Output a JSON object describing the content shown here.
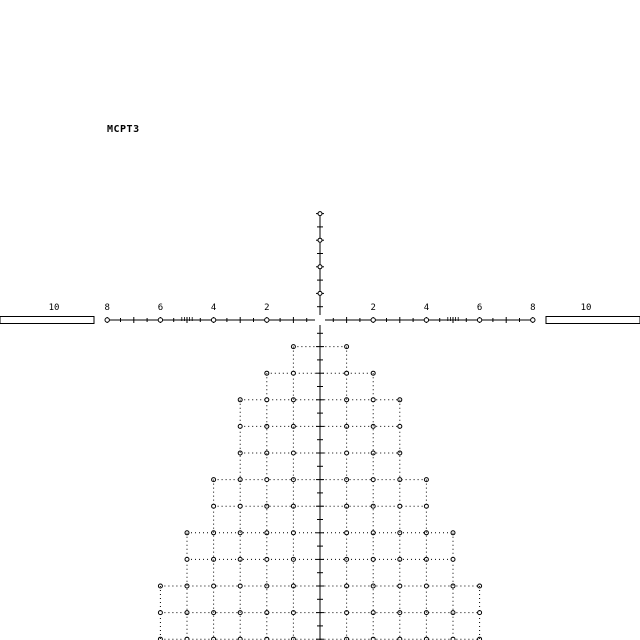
{
  "reticle": {
    "name": "MCPT3",
    "color": "#000000",
    "horizontal_labels_left": [
      "10",
      "8",
      "6",
      "4",
      "2"
    ],
    "horizontal_labels_right": [
      "2",
      "4",
      "6",
      "8",
      "10"
    ],
    "horizontal_label_values": [
      10,
      8,
      6,
      4,
      2
    ],
    "grid_rows": [
      {
        "row": 1,
        "half_width": 1
      },
      {
        "row": 2,
        "half_width": 2
      },
      {
        "row": 3,
        "half_width": 3
      },
      {
        "row": 4,
        "half_width": 3
      },
      {
        "row": 5,
        "half_width": 3
      },
      {
        "row": 6,
        "half_width": 4
      },
      {
        "row": 7,
        "half_width": 4
      },
      {
        "row": 8,
        "half_width": 5
      },
      {
        "row": 9,
        "half_width": 5
      },
      {
        "row": 10,
        "half_width": 6
      },
      {
        "row": 11,
        "half_width": 6
      },
      {
        "row": 12,
        "half_width": 6
      }
    ]
  }
}
